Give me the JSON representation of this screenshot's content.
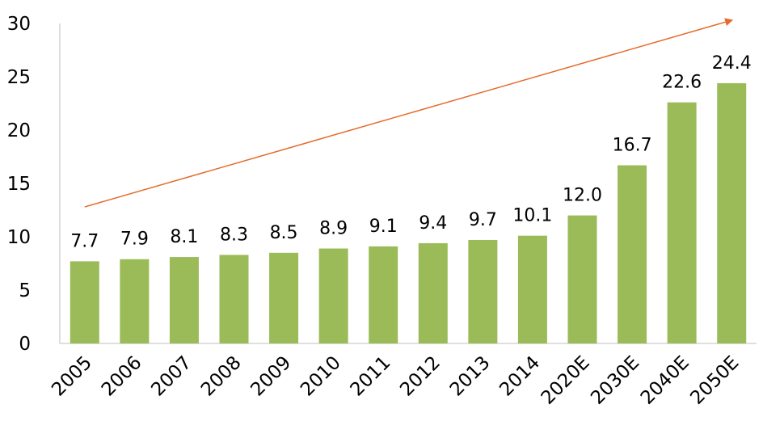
{
  "chart_data": {
    "type": "bar",
    "categories": [
      "2005",
      "2006",
      "2007",
      "2008",
      "2009",
      "2010",
      "2011",
      "2012",
      "2013",
      "2014",
      "2020E",
      "2030E",
      "2040E",
      "2050E"
    ],
    "values": [
      7.7,
      7.9,
      8.1,
      8.3,
      8.5,
      8.9,
      9.1,
      9.4,
      9.7,
      10.1,
      12.0,
      16.7,
      22.6,
      24.4
    ],
    "value_labels": [
      "7.7",
      "7.9",
      "8.1",
      "8.3",
      "8.5",
      "8.9",
      "9.1",
      "9.4",
      "9.7",
      "10.1",
      "12.0",
      "16.7",
      "22.6",
      "24.4"
    ],
    "yticks": [
      "0",
      "5",
      "10",
      "15",
      "20",
      "25",
      "30"
    ],
    "ylim": [
      0,
      30
    ],
    "grid": false,
    "legend": "none",
    "bar_color": "#9bbb59",
    "trend_arrow_color": "#e46c2c",
    "trend_arrow": {
      "from_value": 12.8,
      "to_value": 30.3
    }
  }
}
